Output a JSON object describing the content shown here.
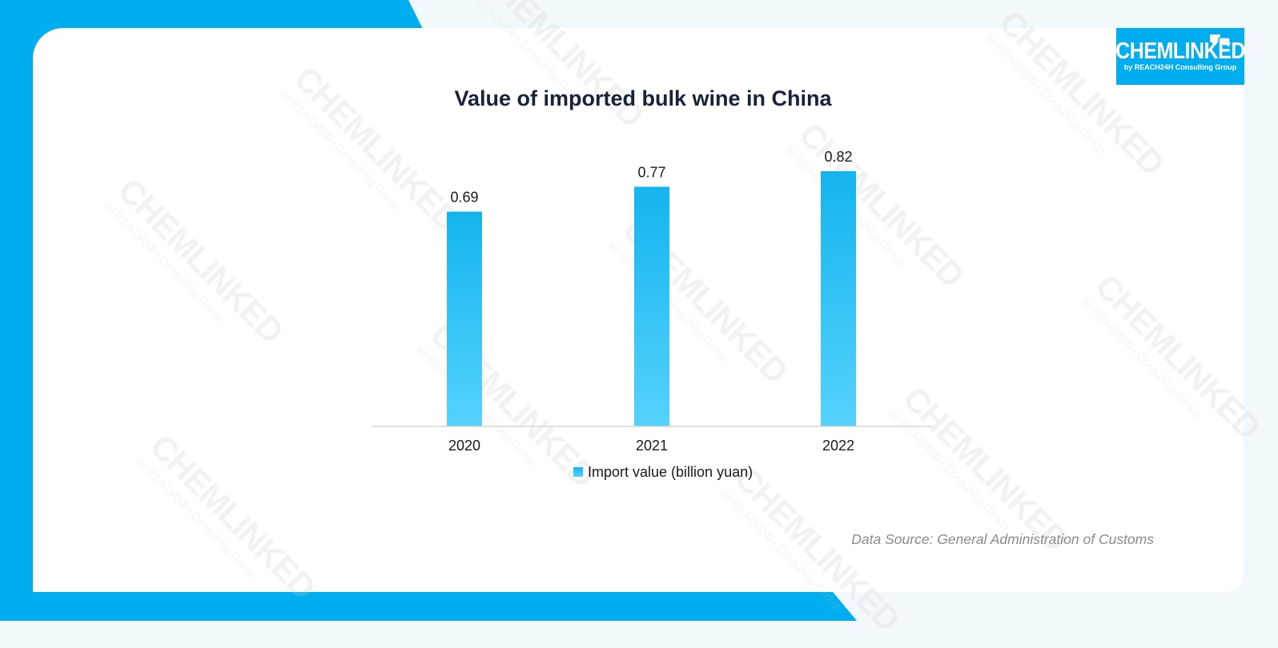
{
  "brand": {
    "logo_text": "CHEMLINKED",
    "logo_sub": "by REACH24H Consulting Group",
    "accent": "#00aeef"
  },
  "chart_data": {
    "type": "bar",
    "title": "Value of imported bulk wine in China",
    "categories": [
      "2020",
      "2021",
      "2022"
    ],
    "series": [
      {
        "name": "Import value (billion yuan)",
        "values": [
          0.69,
          0.77,
          0.82
        ],
        "color": "#29c1f5"
      }
    ],
    "data_labels": [
      "0.69",
      "0.77",
      "0.82"
    ],
    "ylim": [
      0,
      0.82
    ],
    "grid": false,
    "legend": "bottom-center",
    "xlabel": "",
    "ylabel": ""
  },
  "source": "Data Source: General Administration of Customs"
}
